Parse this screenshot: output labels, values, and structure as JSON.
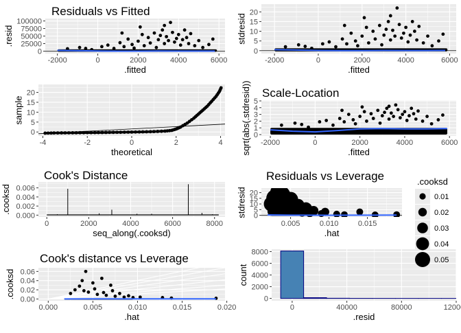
{
  "chart_data": [
    {
      "id": "p1",
      "type": "scatter",
      "title": "Residuals vs Fitted",
      "xlabel": ".fitted",
      "ylabel": ".resid",
      "xlim": [
        -2600,
        6300
      ],
      "ylim": [
        -8000,
        108000
      ],
      "xticks": [
        -2000,
        0,
        2000,
        4000,
        6000
      ],
      "xtick_labels": [
        "-2000",
        "0",
        "2000",
        "4000",
        "6000"
      ],
      "yticks": [
        0,
        25000,
        50000,
        75000,
        100000
      ],
      "ytick_labels": [
        "0",
        "25000",
        "50000",
        "75000",
        "100000"
      ],
      "smooth": [
        [
          -2000,
          2500
        ],
        [
          -1000,
          1500
        ],
        [
          0,
          500
        ],
        [
          1000,
          0
        ],
        [
          2000,
          0
        ],
        [
          3000,
          500
        ],
        [
          4000,
          200
        ],
        [
          5000,
          200
        ],
        [
          5800,
          300
        ]
      ],
      "refline": 0,
      "points": [
        [
          -1500,
          8000
        ],
        [
          -900,
          12000
        ],
        [
          -600,
          9000
        ],
        [
          -300,
          5000
        ],
        [
          200,
          15000
        ],
        [
          500,
          20000
        ],
        [
          800,
          9000
        ],
        [
          1100,
          28000
        ],
        [
          1300,
          15000
        ],
        [
          1500,
          40000
        ],
        [
          1700,
          22000
        ],
        [
          1800,
          10000
        ],
        [
          2000,
          33000
        ],
        [
          2200,
          55000
        ],
        [
          2300,
          18000
        ],
        [
          2500,
          45000
        ],
        [
          2600,
          27000
        ],
        [
          2800,
          60000
        ],
        [
          2900,
          12000
        ],
        [
          3000,
          38000
        ],
        [
          3100,
          52000
        ],
        [
          3200,
          70000
        ],
        [
          3300,
          25000
        ],
        [
          3400,
          48000
        ],
        [
          3500,
          35000
        ],
        [
          3600,
          95000
        ],
        [
          3700,
          62000
        ],
        [
          3800,
          30000
        ],
        [
          3900,
          42000
        ],
        [
          4000,
          55000
        ],
        [
          4100,
          20000
        ],
        [
          4200,
          38000
        ],
        [
          4400,
          45000
        ],
        [
          4500,
          25000
        ],
        [
          4600,
          58000
        ],
        [
          4800,
          18000
        ],
        [
          5000,
          35000
        ],
        [
          5200,
          12000
        ],
        [
          5500,
          22000
        ],
        [
          5700,
          40000
        ],
        [
          2100,
          80000
        ],
        [
          1200,
          60000
        ],
        [
          3300,
          85000
        ],
        [
          4300,
          70000
        ]
      ]
    },
    {
      "id": "p2",
      "type": "scatter",
      "title": "",
      "xlabel": ".fitted",
      "ylabel": "stdresid",
      "xlim": [
        -2600,
        6300
      ],
      "ylim": [
        -1.5,
        24
      ],
      "xticks": [
        -2000,
        0,
        2000,
        4000,
        6000
      ],
      "xtick_labels": [
        "-2000",
        "0",
        "2000",
        "4000",
        "6000"
      ],
      "yticks": [
        0,
        5,
        10,
        15,
        20
      ],
      "ytick_labels": [
        "0",
        "5",
        "10",
        "15",
        "20"
      ],
      "smooth": [
        [
          -2000,
          0.5
        ],
        [
          -1000,
          0.3
        ],
        [
          0,
          0.1
        ],
        [
          1000,
          0
        ],
        [
          2000,
          0
        ],
        [
          3000,
          0.1
        ],
        [
          4000,
          0.05
        ],
        [
          5000,
          0.05
        ],
        [
          5800,
          0.1
        ]
      ],
      "refline": 0,
      "points": [
        [
          -1500,
          2
        ],
        [
          -900,
          3
        ],
        [
          -600,
          2.2
        ],
        [
          -300,
          1.2
        ],
        [
          200,
          3.5
        ],
        [
          500,
          4.5
        ],
        [
          800,
          2
        ],
        [
          1100,
          6
        ],
        [
          1300,
          3.5
        ],
        [
          1500,
          9
        ],
        [
          1700,
          5
        ],
        [
          1800,
          2.5
        ],
        [
          2000,
          7.5
        ],
        [
          2200,
          12
        ],
        [
          2300,
          4
        ],
        [
          2500,
          10
        ],
        [
          2600,
          6
        ],
        [
          2800,
          13
        ],
        [
          2900,
          3
        ],
        [
          3000,
          8
        ],
        [
          3100,
          11
        ],
        [
          3200,
          15
        ],
        [
          3300,
          5.5
        ],
        [
          3400,
          10.5
        ],
        [
          3500,
          7.5
        ],
        [
          3600,
          22
        ],
        [
          3700,
          13.5
        ],
        [
          3800,
          6.5
        ],
        [
          3900,
          9
        ],
        [
          4000,
          12
        ],
        [
          4100,
          4.5
        ],
        [
          4200,
          8
        ],
        [
          4400,
          10
        ],
        [
          4500,
          5.5
        ],
        [
          4600,
          12.5
        ],
        [
          4800,
          4
        ],
        [
          5000,
          7.5
        ],
        [
          5200,
          2.5
        ],
        [
          5500,
          5
        ],
        [
          5700,
          8.5
        ],
        [
          2100,
          17
        ],
        [
          1200,
          13
        ],
        [
          3300,
          18
        ],
        [
          4300,
          15
        ]
      ]
    },
    {
      "id": "p3",
      "type": "scatter",
      "title": "",
      "xlabel": "theoretical",
      "ylabel": "sample",
      "xlim": [
        -4.2,
        4.2
      ],
      "ylim": [
        -2,
        24
      ],
      "xticks": [
        -4,
        -2,
        0,
        2,
        4
      ],
      "xtick_labels": [
        "-4",
        "-2",
        "0",
        "2",
        "4"
      ],
      "yticks": [
        0,
        5,
        10,
        15,
        20
      ],
      "ytick_labels": [
        "0",
        "5",
        "10",
        "15",
        "20"
      ],
      "refline_points": [
        [
          -4.2,
          -0.9
        ],
        [
          4.2,
          4.0
        ]
      ],
      "qq_curve": [
        [
          -3.9,
          -0.6
        ],
        [
          -3.5,
          -0.5
        ],
        [
          -3,
          -0.45
        ],
        [
          -2.5,
          -0.4
        ],
        [
          -2,
          -0.35
        ],
        [
          -1.5,
          -0.3
        ],
        [
          -1,
          -0.22
        ],
        [
          -0.5,
          -0.15
        ],
        [
          0,
          -0.05
        ],
        [
          0.5,
          0.05
        ],
        [
          1,
          0.2
        ],
        [
          1.5,
          0.45
        ],
        [
          1.8,
          0.8
        ],
        [
          2,
          1.5
        ],
        [
          2.2,
          2.5
        ],
        [
          2.5,
          4.5
        ],
        [
          2.8,
          7
        ],
        [
          3,
          9
        ],
        [
          3.2,
          11
        ],
        [
          3.4,
          13
        ],
        [
          3.6,
          15.5
        ],
        [
          3.8,
          18
        ],
        [
          3.95,
          20.5
        ],
        [
          4.05,
          23
        ]
      ]
    },
    {
      "id": "p4",
      "type": "scatter",
      "title": "Scale-Location",
      "xlabel": ".fitted",
      "ylabel": "sqrt(abs(.stdresid))",
      "xlim": [
        -2400,
        6300
      ],
      "ylim": [
        -0.2,
        5.1
      ],
      "xticks": [
        -2000,
        0,
        2000,
        4000,
        6000
      ],
      "xtick_labels": [
        "-2000",
        "0",
        "2000",
        "4000",
        "6000"
      ],
      "yticks": [
        0,
        1,
        2,
        3,
        4,
        5
      ],
      "ytick_labels": [
        "0",
        "1",
        "2",
        "3",
        "4",
        "5"
      ],
      "smooth": [
        [
          -2000,
          0.7
        ],
        [
          -1000,
          0.5
        ],
        [
          0,
          0.4
        ],
        [
          1000,
          0.6
        ],
        [
          2000,
          0.85
        ],
        [
          3000,
          0.9
        ],
        [
          4000,
          0.85
        ],
        [
          5000,
          0.85
        ],
        [
          5900,
          0.9
        ]
      ],
      "points": [
        [
          -1500,
          1.4
        ],
        [
          -900,
          1.7
        ],
        [
          -600,
          1.5
        ],
        [
          -300,
          1.1
        ],
        [
          200,
          1.9
        ],
        [
          500,
          2.1
        ],
        [
          800,
          1.4
        ],
        [
          1100,
          2.4
        ],
        [
          1300,
          1.9
        ],
        [
          1500,
          3.0
        ],
        [
          1700,
          2.2
        ],
        [
          1800,
          1.6
        ],
        [
          2000,
          2.7
        ],
        [
          2200,
          3.4
        ],
        [
          2300,
          2.0
        ],
        [
          2500,
          3.1
        ],
        [
          2600,
          2.4
        ],
        [
          2800,
          3.6
        ],
        [
          2900,
          1.7
        ],
        [
          3000,
          2.8
        ],
        [
          3100,
          3.3
        ],
        [
          3200,
          3.9
        ],
        [
          3300,
          2.3
        ],
        [
          3400,
          3.2
        ],
        [
          3500,
          2.7
        ],
        [
          3600,
          4.4
        ],
        [
          3700,
          3.7
        ],
        [
          3800,
          2.5
        ],
        [
          3900,
          3.0
        ],
        [
          4000,
          3.4
        ],
        [
          4100,
          2.1
        ],
        [
          4200,
          2.8
        ],
        [
          4400,
          3.1
        ],
        [
          4500,
          2.3
        ],
        [
          4600,
          3.5
        ],
        [
          4800,
          2.0
        ],
        [
          5000,
          2.7
        ],
        [
          5200,
          1.6
        ],
        [
          5500,
          2.2
        ],
        [
          5700,
          2.9
        ],
        [
          2100,
          4.1
        ],
        [
          1200,
          3.6
        ],
        [
          3300,
          4.2
        ],
        [
          4300,
          3.9
        ]
      ]
    },
    {
      "id": "p5",
      "type": "bar",
      "title": "Cook's Distance",
      "xlabel": "seq_along(.cooksd)",
      "ylabel": ".cooksd",
      "xlim": [
        -400,
        8500
      ],
      "ylim": [
        -0.0004,
        0.0073
      ],
      "xticks": [
        0,
        2000,
        4000,
        6000,
        8000
      ],
      "xtick_labels": [
        "0",
        "2000",
        "4000",
        "6000",
        "8000"
      ],
      "yticks": [
        0,
        0.002,
        0.004,
        0.006
      ],
      "ytick_labels": [
        "0.000",
        "0.002",
        "0.004",
        "0.006"
      ],
      "spikes": [
        [
          1000,
          0.0058
        ],
        [
          6750,
          0.0068
        ],
        [
          3100,
          0.0012
        ],
        [
          2500,
          0.0004
        ],
        [
          5000,
          0.0003
        ],
        [
          7400,
          0.0005
        ],
        [
          500,
          0.0002
        ],
        [
          4300,
          0.0003
        ],
        [
          7900,
          0.0002
        ]
      ]
    },
    {
      "id": "p6",
      "type": "scatter",
      "title": "Residuals vs Leverage",
      "xlabel": ".hat",
      "ylabel": "stdresid",
      "xlim": [
        0.0012,
        0.0195
      ],
      "ylim": [
        -1.5,
        24
      ],
      "xticks": [
        0.005,
        0.01,
        0.015
      ],
      "xtick_labels": [
        "0.005",
        "0.010",
        "0.015"
      ],
      "yticks": [
        0,
        5,
        10,
        15,
        20
      ],
      "ytick_labels": [
        "0",
        "5",
        "10",
        "15",
        "20"
      ],
      "smooth": [
        [
          0.002,
          0.3
        ],
        [
          0.005,
          0.1
        ],
        [
          0.01,
          0.05
        ],
        [
          0.015,
          0.1
        ],
        [
          0.0188,
          0.15
        ]
      ],
      "refline": 0,
      "points": [
        [
          0.0025,
          10,
          0.04
        ],
        [
          0.003,
          15,
          0.05
        ],
        [
          0.0035,
          20,
          0.05
        ],
        [
          0.0028,
          6,
          0.03
        ],
        [
          0.004,
          12,
          0.04
        ],
        [
          0.0045,
          8,
          0.03
        ],
        [
          0.0038,
          18,
          0.05
        ],
        [
          0.005,
          14,
          0.04
        ],
        [
          0.0055,
          5,
          0.02
        ],
        [
          0.006,
          9,
          0.03
        ],
        [
          0.0065,
          3,
          0.02
        ],
        [
          0.007,
          6,
          0.03
        ],
        [
          0.0075,
          2,
          0.015
        ],
        [
          0.008,
          4,
          0.02
        ],
        [
          0.009,
          1.5,
          0.01
        ],
        [
          0.0095,
          3,
          0.015
        ],
        [
          0.011,
          1,
          0.01
        ],
        [
          0.012,
          0.5,
          0.01
        ],
        [
          0.014,
          3,
          0.01
        ],
        [
          0.016,
          0.3,
          0.01
        ],
        [
          0.0188,
          0.5,
          0.01
        ]
      ]
    },
    {
      "id": "p7",
      "type": "scatter",
      "title": "Cook's distance vs Leverage",
      "xlabel": ".hat",
      "ylabel": ".cooksd",
      "xlim": [
        -0.0011,
        0.0198
      ],
      "ylim": [
        -0.0038,
        0.068
      ],
      "xticks": [
        0,
        0.005,
        0.01,
        0.015,
        0.02
      ],
      "xtick_labels": [
        "0.000",
        "0.005",
        "0.010",
        "0.015",
        "0.020"
      ],
      "yticks": [
        0,
        0.02,
        0.04,
        0.06
      ],
      "ytick_labels": [
        "0.00",
        "0.02",
        "0.04",
        "0.06"
      ],
      "contours": [
        0.022,
        0.03,
        0.042,
        0.055,
        0.068,
        0.08
      ],
      "smooth": [
        [
          0.0018,
          0.0002
        ],
        [
          0.01,
          0.0003
        ],
        [
          0.0188,
          0.0004
        ]
      ],
      "points": [
        [
          0.0025,
          0.012
        ],
        [
          0.003,
          0.02
        ],
        [
          0.0035,
          0.028
        ],
        [
          0.0038,
          0.04
        ],
        [
          0.004,
          0.018
        ],
        [
          0.0042,
          0.06
        ],
        [
          0.0045,
          0.015
        ],
        [
          0.005,
          0.035
        ],
        [
          0.0052,
          0.022
        ],
        [
          0.0055,
          0.01
        ],
        [
          0.006,
          0.045
        ],
        [
          0.0062,
          0.014
        ],
        [
          0.0065,
          0.008
        ],
        [
          0.007,
          0.03
        ],
        [
          0.0072,
          0.018
        ],
        [
          0.0075,
          0.006
        ],
        [
          0.008,
          0.012
        ],
        [
          0.0085,
          0.004
        ],
        [
          0.009,
          0.007
        ],
        [
          0.0095,
          0.003
        ],
        [
          0.0103,
          0.004
        ],
        [
          0.0128,
          0.003
        ],
        [
          0.0138,
          0.002
        ],
        [
          0.0188,
          0.0015
        ]
      ]
    },
    {
      "id": "p8",
      "type": "histogram",
      "title": "",
      "xlabel": ".resid",
      "ylabel": "count",
      "xlim": [
        -15000,
        120000
      ],
      "ylim": [
        -400,
        8400
      ],
      "xticks": [
        0,
        40000,
        80000,
        120000
      ],
      "xtick_labels": [
        "0",
        "40000",
        "80000",
        "120000"
      ],
      "yticks": [
        0,
        2000,
        4000,
        6000,
        8000
      ],
      "ytick_labels": [
        "0",
        "2000",
        "4000",
        "6000",
        "8000"
      ],
      "bin_width": 16800,
      "bin_edges_start": -8400,
      "counts": [
        8100,
        120,
        25,
        8,
        5,
        3,
        2,
        1
      ],
      "fill": "#4682B4"
    }
  ],
  "legend": {
    "title": ".cooksd",
    "labels": [
      "0.01",
      "0.02",
      "0.03",
      "0.04",
      "0.05"
    ],
    "values": [
      0.01,
      0.02,
      0.03,
      0.04,
      0.05
    ]
  },
  "colors": {
    "panel": "#EBEBEB",
    "grid_major": "#FFFFFF",
    "smooth": "#3366FF",
    "point": "#000000"
  }
}
